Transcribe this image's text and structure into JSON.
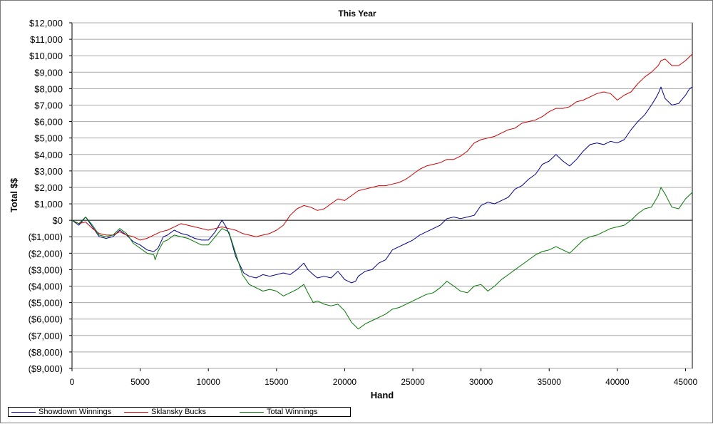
{
  "chart_data": {
    "type": "line",
    "title": "This Year",
    "xlabel": "Hand",
    "ylabel": "Total $$",
    "xlim": [
      0,
      45500
    ],
    "ylim": [
      -9000,
      12000
    ],
    "x_ticks": [
      0,
      5000,
      10000,
      15000,
      20000,
      25000,
      30000,
      35000,
      40000,
      45000
    ],
    "x_tick_labels": [
      "0",
      "5000",
      "10000",
      "15000",
      "20000",
      "25000",
      "30000",
      "35000",
      "40000",
      "45000"
    ],
    "y_ticks": [
      12000,
      11000,
      10000,
      9000,
      8000,
      7000,
      6000,
      5000,
      4000,
      3000,
      2000,
      1000,
      0,
      -1000,
      -2000,
      -3000,
      -4000,
      -5000,
      -6000,
      -7000,
      -8000,
      -9000
    ],
    "y_tick_labels": [
      "$12,000",
      "$11,000",
      "$10,000",
      "$9,000",
      "$8,000",
      "$7,000",
      "$6,000",
      "$5,000",
      "$4,000",
      "$3,000",
      "$2,000",
      "$1,000",
      "$0",
      "($1,000)",
      "($2,000)",
      "($3,000)",
      "($4,000)",
      "($5,000)",
      "($6,000)",
      "($7,000)",
      "($8,000)",
      "($9,000)"
    ],
    "grid": "horizontal",
    "zero_line": true,
    "legend_position": "bottom",
    "series": [
      {
        "name": "Showdown Winnings",
        "color": "#00008b",
        "points": [
          [
            0,
            0
          ],
          [
            500,
            -300
          ],
          [
            1000,
            200
          ],
          [
            1500,
            -400
          ],
          [
            2000,
            -1000
          ],
          [
            2500,
            -1100
          ],
          [
            3000,
            -1000
          ],
          [
            3500,
            -600
          ],
          [
            4000,
            -900
          ],
          [
            4500,
            -1300
          ],
          [
            5000,
            -1500
          ],
          [
            5500,
            -1800
          ],
          [
            6000,
            -1900
          ],
          [
            6300,
            -1700
          ],
          [
            6700,
            -1000
          ],
          [
            7000,
            -900
          ],
          [
            7500,
            -600
          ],
          [
            8000,
            -800
          ],
          [
            8500,
            -900
          ],
          [
            9000,
            -1100
          ],
          [
            9500,
            -1200
          ],
          [
            10000,
            -1200
          ],
          [
            10500,
            -700
          ],
          [
            11000,
            0
          ],
          [
            11300,
            -400
          ],
          [
            11600,
            -1000
          ],
          [
            12000,
            -2200
          ],
          [
            12300,
            -2700
          ],
          [
            12600,
            -3200
          ],
          [
            13000,
            -3400
          ],
          [
            13500,
            -3500
          ],
          [
            14000,
            -3300
          ],
          [
            14500,
            -3400
          ],
          [
            15000,
            -3300
          ],
          [
            15500,
            -3200
          ],
          [
            16000,
            -3300
          ],
          [
            16500,
            -3000
          ],
          [
            17000,
            -2600
          ],
          [
            17300,
            -3000
          ],
          [
            17700,
            -3300
          ],
          [
            18000,
            -3500
          ],
          [
            18500,
            -3400
          ],
          [
            19000,
            -3500
          ],
          [
            19500,
            -3100
          ],
          [
            20000,
            -3600
          ],
          [
            20500,
            -3800
          ],
          [
            20800,
            -3700
          ],
          [
            21000,
            -3400
          ],
          [
            21500,
            -3100
          ],
          [
            22000,
            -3000
          ],
          [
            22500,
            -2600
          ],
          [
            23000,
            -2400
          ],
          [
            23500,
            -1800
          ],
          [
            24000,
            -1600
          ],
          [
            24500,
            -1400
          ],
          [
            25000,
            -1200
          ],
          [
            25500,
            -900
          ],
          [
            26000,
            -700
          ],
          [
            26500,
            -500
          ],
          [
            27000,
            -300
          ],
          [
            27500,
            100
          ],
          [
            28000,
            200
          ],
          [
            28500,
            100
          ],
          [
            29000,
            200
          ],
          [
            29500,
            300
          ],
          [
            30000,
            900
          ],
          [
            30500,
            1100
          ],
          [
            31000,
            1000
          ],
          [
            31500,
            1200
          ],
          [
            32000,
            1400
          ],
          [
            32500,
            1900
          ],
          [
            33000,
            2100
          ],
          [
            33500,
            2500
          ],
          [
            34000,
            2800
          ],
          [
            34500,
            3400
          ],
          [
            35000,
            3600
          ],
          [
            35500,
            4000
          ],
          [
            36000,
            3600
          ],
          [
            36500,
            3300
          ],
          [
            37000,
            3700
          ],
          [
            37500,
            4200
          ],
          [
            38000,
            4600
          ],
          [
            38500,
            4700
          ],
          [
            39000,
            4600
          ],
          [
            39500,
            4800
          ],
          [
            40000,
            4700
          ],
          [
            40500,
            4900
          ],
          [
            41000,
            5500
          ],
          [
            41500,
            6000
          ],
          [
            42000,
            6400
          ],
          [
            42500,
            7000
          ],
          [
            42800,
            7400
          ],
          [
            43000,
            7700
          ],
          [
            43200,
            8100
          ],
          [
            43500,
            7400
          ],
          [
            44000,
            7000
          ],
          [
            44500,
            7100
          ],
          [
            45000,
            7600
          ],
          [
            45300,
            8000
          ],
          [
            45500,
            8100
          ]
        ]
      },
      {
        "name": "Sklansky Bucks",
        "color": "#cc0000",
        "points": [
          [
            0,
            0
          ],
          [
            500,
            -200
          ],
          [
            1000,
            -100
          ],
          [
            1500,
            -500
          ],
          [
            2000,
            -800
          ],
          [
            2500,
            -900
          ],
          [
            3000,
            -900
          ],
          [
            3500,
            -700
          ],
          [
            4000,
            -900
          ],
          [
            4500,
            -1000
          ],
          [
            5000,
            -1200
          ],
          [
            5500,
            -1100
          ],
          [
            6000,
            -900
          ],
          [
            6500,
            -700
          ],
          [
            7000,
            -600
          ],
          [
            7500,
            -400
          ],
          [
            8000,
            -200
          ],
          [
            8500,
            -300
          ],
          [
            9000,
            -400
          ],
          [
            9500,
            -500
          ],
          [
            10000,
            -600
          ],
          [
            10500,
            -500
          ],
          [
            11000,
            -400
          ],
          [
            11500,
            -500
          ],
          [
            12000,
            -600
          ],
          [
            12500,
            -800
          ],
          [
            13000,
            -900
          ],
          [
            13500,
            -1000
          ],
          [
            14000,
            -900
          ],
          [
            14500,
            -800
          ],
          [
            15000,
            -600
          ],
          [
            15500,
            -300
          ],
          [
            16000,
            300
          ],
          [
            16500,
            700
          ],
          [
            17000,
            900
          ],
          [
            17500,
            800
          ],
          [
            18000,
            600
          ],
          [
            18500,
            700
          ],
          [
            19000,
            1000
          ],
          [
            19500,
            1300
          ],
          [
            20000,
            1200
          ],
          [
            20500,
            1500
          ],
          [
            21000,
            1800
          ],
          [
            21500,
            1900
          ],
          [
            22000,
            2000
          ],
          [
            22500,
            2100
          ],
          [
            23000,
            2100
          ],
          [
            23500,
            2200
          ],
          [
            24000,
            2300
          ],
          [
            24500,
            2500
          ],
          [
            25000,
            2800
          ],
          [
            25500,
            3100
          ],
          [
            26000,
            3300
          ],
          [
            26500,
            3400
          ],
          [
            27000,
            3500
          ],
          [
            27500,
            3700
          ],
          [
            28000,
            3700
          ],
          [
            28500,
            3900
          ],
          [
            29000,
            4200
          ],
          [
            29500,
            4700
          ],
          [
            30000,
            4900
          ],
          [
            30500,
            5000
          ],
          [
            31000,
            5100
          ],
          [
            31500,
            5300
          ],
          [
            32000,
            5500
          ],
          [
            32500,
            5600
          ],
          [
            33000,
            5900
          ],
          [
            33500,
            6000
          ],
          [
            34000,
            6100
          ],
          [
            34500,
            6300
          ],
          [
            35000,
            6600
          ],
          [
            35500,
            6800
          ],
          [
            36000,
            6800
          ],
          [
            36500,
            6900
          ],
          [
            37000,
            7200
          ],
          [
            37500,
            7300
          ],
          [
            38000,
            7500
          ],
          [
            38500,
            7700
          ],
          [
            39000,
            7800
          ],
          [
            39500,
            7700
          ],
          [
            40000,
            7300
          ],
          [
            40500,
            7600
          ],
          [
            41000,
            7800
          ],
          [
            41500,
            8300
          ],
          [
            42000,
            8700
          ],
          [
            42500,
            9000
          ],
          [
            43000,
            9400
          ],
          [
            43200,
            9700
          ],
          [
            43500,
            9800
          ],
          [
            44000,
            9400
          ],
          [
            44500,
            9400
          ],
          [
            45000,
            9700
          ],
          [
            45500,
            10100
          ]
        ]
      },
      {
        "name": "Total Winnings",
        "color": "#007700",
        "points": [
          [
            0,
            0
          ],
          [
            500,
            -200
          ],
          [
            1000,
            200
          ],
          [
            1500,
            -300
          ],
          [
            2000,
            -900
          ],
          [
            2500,
            -1000
          ],
          [
            3000,
            -900
          ],
          [
            3500,
            -500
          ],
          [
            4000,
            -800
          ],
          [
            4500,
            -1400
          ],
          [
            5000,
            -1700
          ],
          [
            5500,
            -2000
          ],
          [
            6000,
            -2100
          ],
          [
            6100,
            -2400
          ],
          [
            6300,
            -1900
          ],
          [
            6700,
            -1300
          ],
          [
            7000,
            -1200
          ],
          [
            7500,
            -900
          ],
          [
            8000,
            -1000
          ],
          [
            8500,
            -1100
          ],
          [
            9000,
            -1300
          ],
          [
            9500,
            -1500
          ],
          [
            10000,
            -1500
          ],
          [
            10500,
            -1000
          ],
          [
            11000,
            -500
          ],
          [
            11500,
            -700
          ],
          [
            12000,
            -2000
          ],
          [
            12500,
            -3300
          ],
          [
            13000,
            -3900
          ],
          [
            13500,
            -4100
          ],
          [
            14000,
            -4300
          ],
          [
            14500,
            -4200
          ],
          [
            15000,
            -4300
          ],
          [
            15500,
            -4600
          ],
          [
            16000,
            -4400
          ],
          [
            16500,
            -4200
          ],
          [
            17000,
            -3900
          ],
          [
            17300,
            -4400
          ],
          [
            17700,
            -5000
          ],
          [
            18000,
            -4900
          ],
          [
            18500,
            -5100
          ],
          [
            19000,
            -5200
          ],
          [
            19500,
            -5100
          ],
          [
            20000,
            -5500
          ],
          [
            20500,
            -6200
          ],
          [
            21000,
            -6600
          ],
          [
            21500,
            -6300
          ],
          [
            22000,
            -6100
          ],
          [
            22500,
            -5900
          ],
          [
            23000,
            -5700
          ],
          [
            23500,
            -5400
          ],
          [
            24000,
            -5300
          ],
          [
            24500,
            -5100
          ],
          [
            25000,
            -4900
          ],
          [
            25500,
            -4700
          ],
          [
            26000,
            -4500
          ],
          [
            26500,
            -4400
          ],
          [
            27000,
            -4100
          ],
          [
            27500,
            -3700
          ],
          [
            28000,
            -4000
          ],
          [
            28500,
            -4300
          ],
          [
            29000,
            -4400
          ],
          [
            29500,
            -4000
          ],
          [
            30000,
            -3900
          ],
          [
            30500,
            -4300
          ],
          [
            31000,
            -4000
          ],
          [
            31500,
            -3600
          ],
          [
            32000,
            -3300
          ],
          [
            32500,
            -3000
          ],
          [
            33000,
            -2700
          ],
          [
            33500,
            -2400
          ],
          [
            34000,
            -2100
          ],
          [
            34500,
            -1900
          ],
          [
            35000,
            -1800
          ],
          [
            35500,
            -1600
          ],
          [
            36000,
            -1800
          ],
          [
            36500,
            -2000
          ],
          [
            37000,
            -1600
          ],
          [
            37500,
            -1200
          ],
          [
            38000,
            -1000
          ],
          [
            38500,
            -900
          ],
          [
            39000,
            -700
          ],
          [
            39500,
            -500
          ],
          [
            40000,
            -400
          ],
          [
            40500,
            -300
          ],
          [
            41000,
            0
          ],
          [
            41500,
            400
          ],
          [
            42000,
            700
          ],
          [
            42500,
            800
          ],
          [
            43000,
            1500
          ],
          [
            43200,
            2000
          ],
          [
            43500,
            1600
          ],
          [
            44000,
            800
          ],
          [
            44500,
            700
          ],
          [
            45000,
            1300
          ],
          [
            45500,
            1700
          ]
        ]
      }
    ]
  }
}
